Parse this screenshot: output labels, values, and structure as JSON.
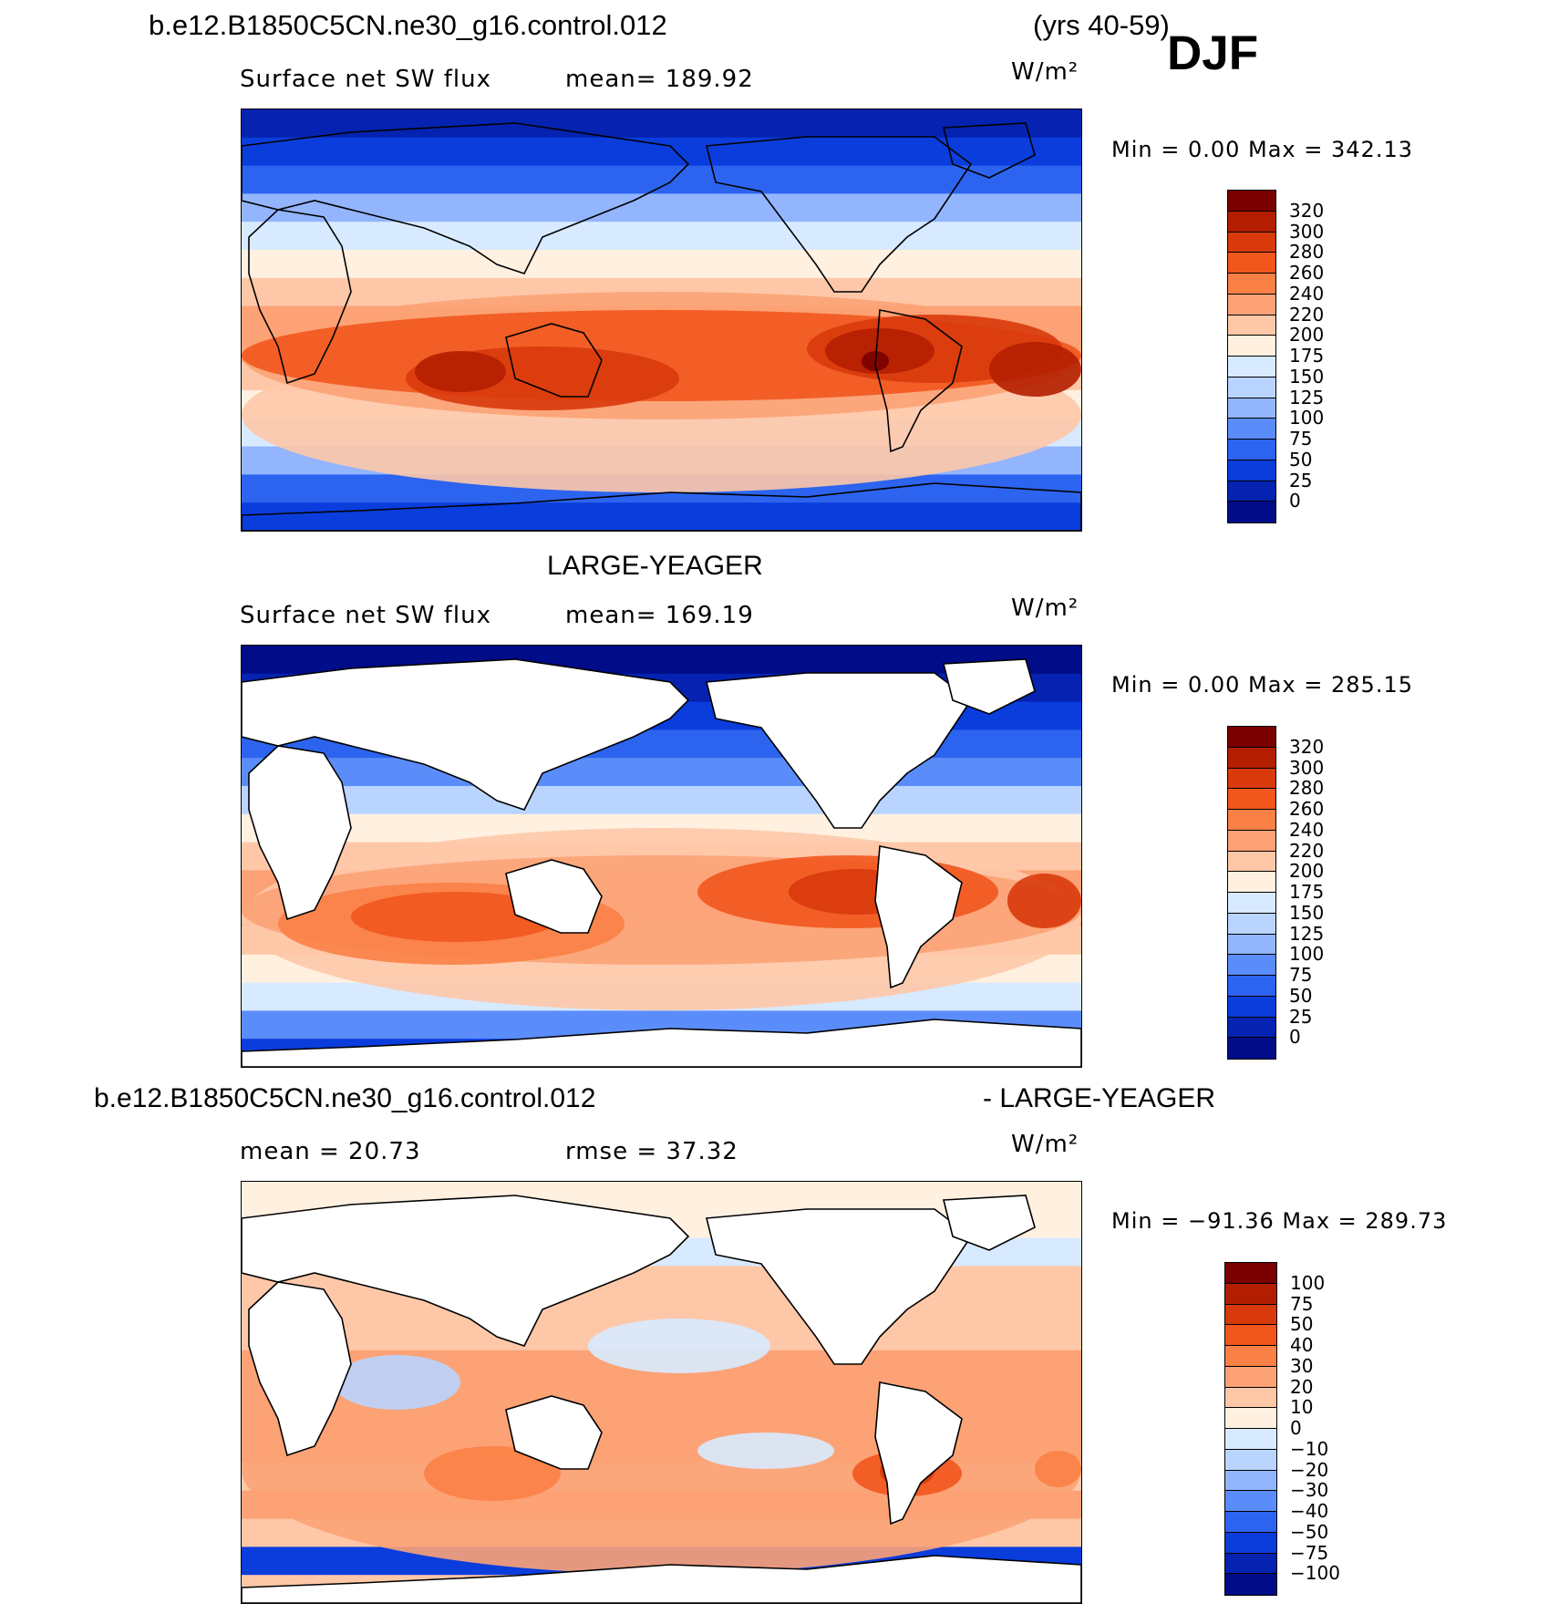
{
  "header": {
    "case_name": "b.e12.B1850C5CN.ne30_g16.control.012",
    "years": "(yrs 40-59)",
    "season": "DJF"
  },
  "panels": [
    {
      "id": "control",
      "title": "",
      "variable": "Surface net SW flux",
      "stat_text": "mean=  189.92",
      "units": "W/m²",
      "min_max": "Min  =     0.00  Max  =  342.13",
      "ocean_only": false,
      "colorbar": {
        "labels": [
          "320",
          "300",
          "280",
          "260",
          "240",
          "220",
          "200",
          "175",
          "150",
          "125",
          "100",
          "75",
          "50",
          "25",
          "0"
        ],
        "colors": [
          "#7b0000",
          "#b41e00",
          "#d83a0c",
          "#f1561d",
          "#f98146",
          "#fca276",
          "#fec8a8",
          "#fff0e0",
          "#d8eaff",
          "#b9d4ff",
          "#92b5fe",
          "#5b8dfa",
          "#2c64ef",
          "#0a3ddc",
          "#0523b0",
          "#000c88"
        ]
      }
    },
    {
      "id": "obs",
      "title": "LARGE-YEAGER",
      "variable": "Surface net SW flux",
      "stat_text": "mean=  169.19",
      "units": "W/m²",
      "min_max": "Min  =     0.00  Max  =  285.15",
      "ocean_only": true,
      "colorbar": {
        "labels": [
          "320",
          "300",
          "280",
          "260",
          "240",
          "220",
          "200",
          "175",
          "150",
          "125",
          "100",
          "75",
          "50",
          "25",
          "0"
        ],
        "colors": [
          "#7b0000",
          "#b41e00",
          "#d83a0c",
          "#f1561d",
          "#f98146",
          "#fca276",
          "#fec8a8",
          "#fff0e0",
          "#d8eaff",
          "#b9d4ff",
          "#92b5fe",
          "#5b8dfa",
          "#2c64ef",
          "#0a3ddc",
          "#0523b0",
          "#000c88"
        ]
      }
    },
    {
      "id": "diff",
      "title_left": "b.e12.B1850C5CN.ne30_g16.control.012",
      "title_right": "- LARGE-YEAGER",
      "stat_left": "mean =   20.73",
      "stat_right": "rmse =   37.32",
      "units": "W/m²",
      "min_max": "Min  = −91.36  Max  =  289.73",
      "ocean_only": true,
      "colorbar": {
        "labels": [
          "100",
          "75",
          "50",
          "40",
          "30",
          "20",
          "10",
          "0",
          "−10",
          "−20",
          "−30",
          "−40",
          "−50",
          "−75",
          "−100"
        ],
        "colors": [
          "#7b0000",
          "#b41e00",
          "#d83a0c",
          "#f1561d",
          "#f98146",
          "#fca276",
          "#fec8a8",
          "#fff0e0",
          "#d8eaff",
          "#b9d4ff",
          "#92b5fe",
          "#5b8dfa",
          "#2c64ef",
          "#0a3ddc",
          "#0523b0",
          "#000c88"
        ]
      }
    }
  ]
}
